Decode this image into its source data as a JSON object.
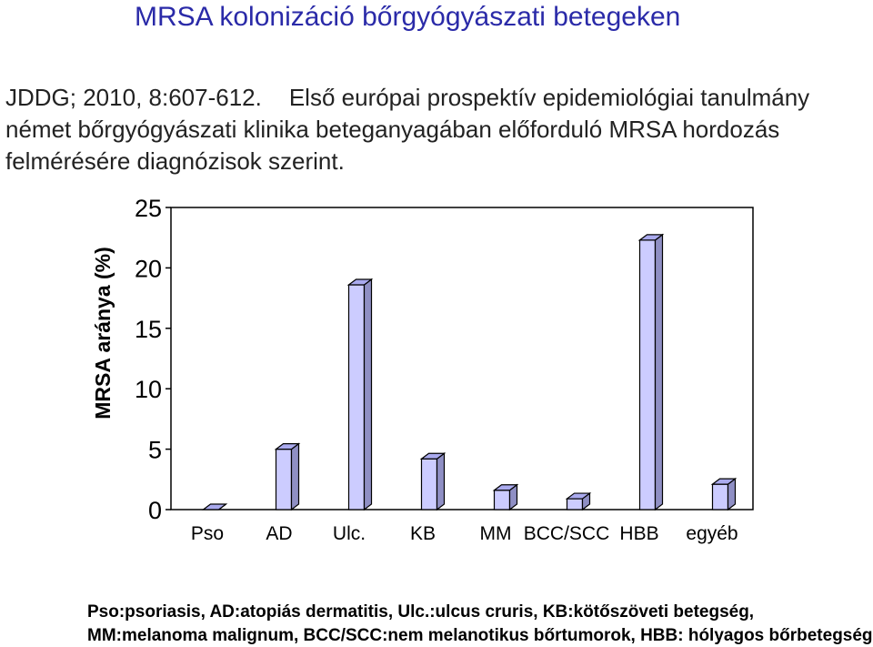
{
  "header": {
    "title": "MRSA kolonizáció bőrgyógyászati betegeken",
    "line1_citation": "JDDG; 2010, 8:607-612.",
    "line1_text": "Első európai prospektív epidemiológiai tanulmány",
    "line2": "német bőrgyógyászati klinika beteganyagában előforduló MRSA hordozás",
    "line3": "felmérésére diagnózisok szerint."
  },
  "chart_data": {
    "type": "bar",
    "categories": [
      "Pso",
      "AD",
      "Ulc.",
      "KB",
      "MM",
      "BCC/SCC",
      "HBB",
      "egyéb"
    ],
    "values": [
      0,
      5,
      18.6,
      4.2,
      1.6,
      0.9,
      22.3,
      2.1
    ],
    "ylabel": "MRSA aránya (%)",
    "ylim": [
      0,
      25
    ],
    "yticks": [
      0,
      5,
      10,
      15,
      20,
      25
    ],
    "grid": false,
    "bar_style": "3d",
    "colors": {
      "bar_front": "#ccccff",
      "bar_side": "#8f8fc4",
      "bar_top": "#aaaaee",
      "stroke": "#000000"
    }
  },
  "footnotes": {
    "line1": "Pso:psoriasis, AD:atopiás dermatitis, Ulc.:ulcus cruris, KB:kötőszöveti betegség,",
    "line2": "MM:melanoma malignum, BCC/SCC:nem melanotikus bőrtumorok, HBB: hólyagos bőrbetegségek"
  }
}
